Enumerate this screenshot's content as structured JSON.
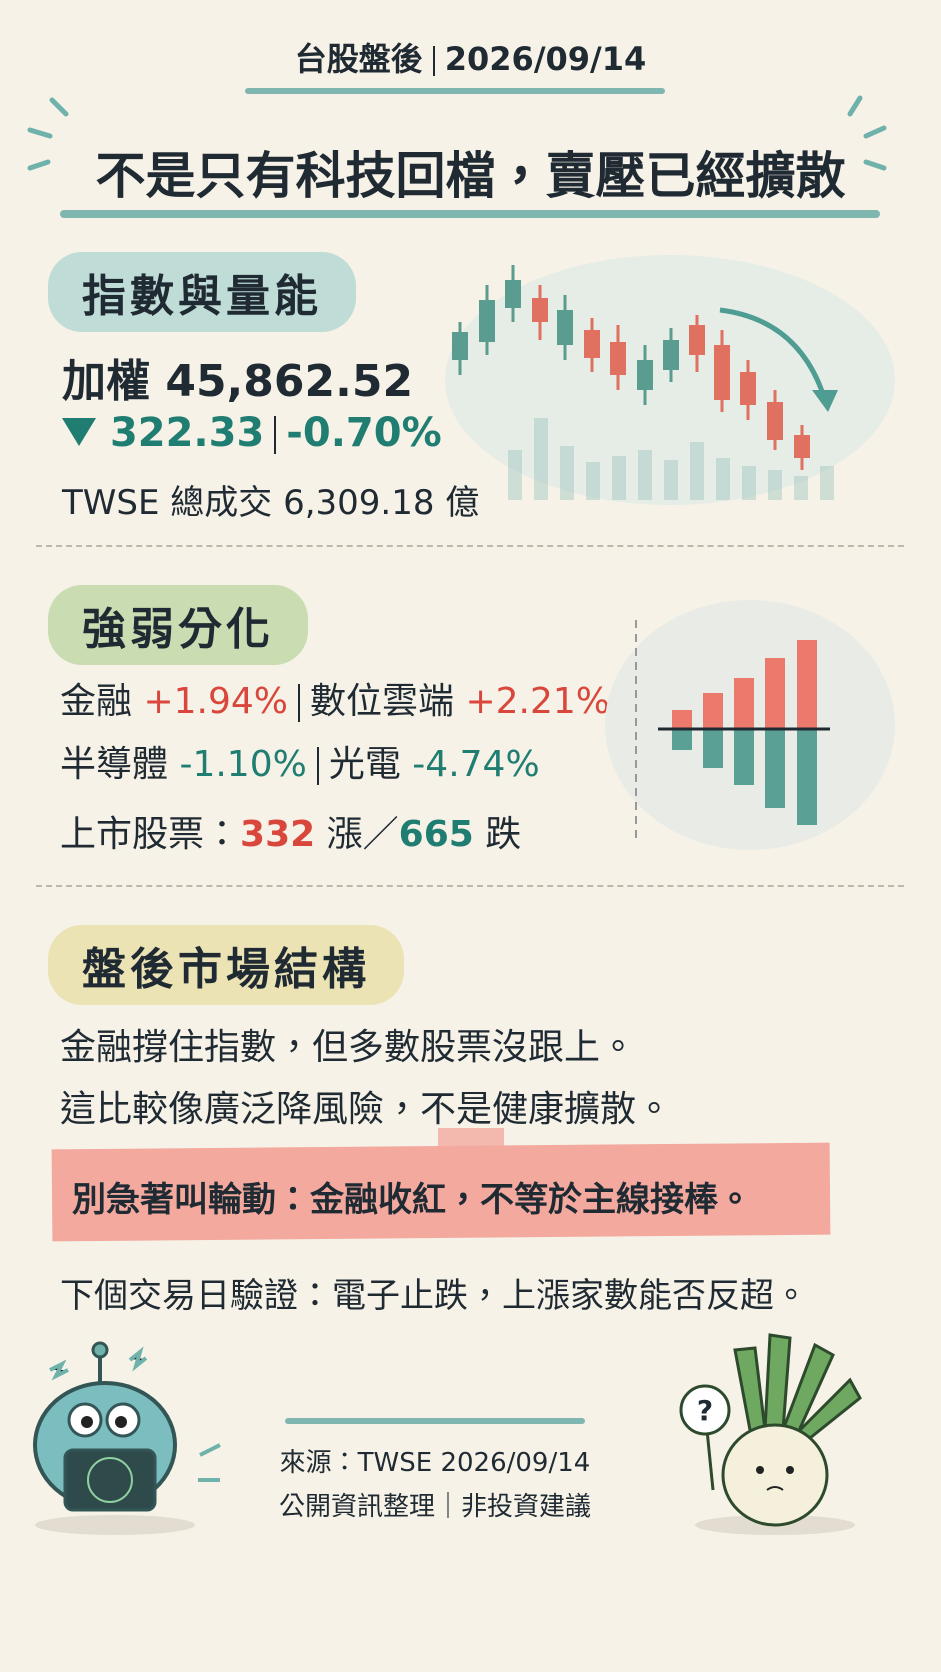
{
  "header": {
    "kicker": "台股盤後",
    "date": "2026/09/14",
    "title": "不是只有科技回檔，賣壓已經擴散"
  },
  "index_section": {
    "heading": "指數與量能",
    "index_name": "加權",
    "index_value": "45,862.52",
    "change": "322.33",
    "change_pct": "-0.70%",
    "volume_label": "TWSE 總成交",
    "volume": "6,309.18",
    "volume_unit": "億"
  },
  "strength_section": {
    "heading": "強弱分化",
    "sectors": [
      {
        "name": "金融",
        "change": "+1.94%"
      },
      {
        "name": "數位雲端",
        "change": "+2.21%"
      },
      {
        "name": "半導體",
        "change": "-1.10%"
      },
      {
        "name": "光電",
        "change": "-4.74%"
      }
    ],
    "breadth": {
      "label": "上市股票：",
      "up": "332",
      "up_label": "漲",
      "separator": "／",
      "down": "665",
      "down_label": "跌"
    }
  },
  "structure_section": {
    "heading": "盤後市場結構",
    "lines": [
      "金融撐住指數，但多數股票沒跟上。",
      "這比較像廣泛降風險，不是健康擴散。"
    ],
    "callout": "別急著叫輪動：金融收紅，不等於主線接棒。",
    "next": "下個交易日驗證：電子止跌，上漲家數能否反超。"
  },
  "footer": {
    "source": "來源：TWSE 2026/09/14",
    "note": "公開資訊整理｜非投資建議",
    "mascot_sign": "?"
  }
}
